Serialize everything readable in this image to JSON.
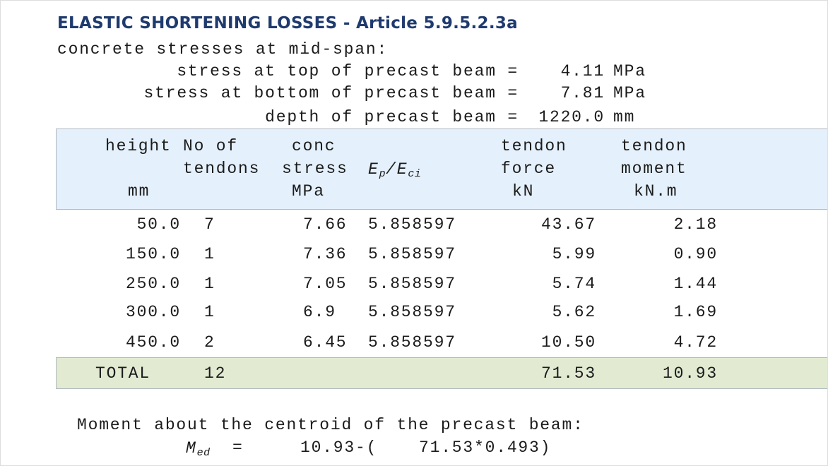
{
  "title": "ELASTIC SHORTENING LOSSES - Article 5.9.5.2.3a",
  "intro": "concrete stresses at mid-span:",
  "params": [
    {
      "label": "stress at top of precast beam =",
      "value": "4.11",
      "unit": "MPa"
    },
    {
      "label": "stress at bottom of precast beam =",
      "value": "7.81",
      "unit": "MPa"
    },
    {
      "label": "depth of precast beam =",
      "value": "1220.0",
      "unit": "mm"
    }
  ],
  "table": {
    "headers": {
      "height": [
        "height",
        "mm"
      ],
      "tendons": [
        "No of",
        "tendons"
      ],
      "stress": [
        "conc",
        "stress",
        "MPa"
      ],
      "ratio": {
        "num": "E",
        "num_sub": "p",
        "sep": "/",
        "den": "E",
        "den_sub": "ci"
      },
      "force": [
        "tendon",
        "force",
        "kN"
      ],
      "moment": [
        "tendon",
        "moment",
        "kN.m"
      ]
    },
    "rows": [
      [
        "50.0",
        "7",
        "7.66",
        "5.858597",
        "43.67",
        "2.18"
      ],
      [
        "150.0",
        "1",
        "7.36",
        "5.858597",
        "5.99",
        "0.90"
      ],
      [
        "250.0",
        "1",
        "7.05",
        "5.858597",
        "5.74",
        "1.44"
      ],
      [
        "300.0",
        "1",
        "6.9",
        "5.858597",
        "5.62",
        "1.69"
      ],
      [
        "450.0",
        "2",
        "6.45",
        "5.858597",
        "10.50",
        "4.72"
      ]
    ],
    "total": {
      "label": "TOTAL",
      "tendons": "12",
      "force": "71.53",
      "moment": "10.93"
    }
  },
  "footer": {
    "text": "Moment about the centroid of the precast beam:",
    "symbol": "M",
    "symbol_sub": "ed",
    "equals": "=",
    "part1": "10.93-(",
    "part2": "71.53*0.493)"
  }
}
